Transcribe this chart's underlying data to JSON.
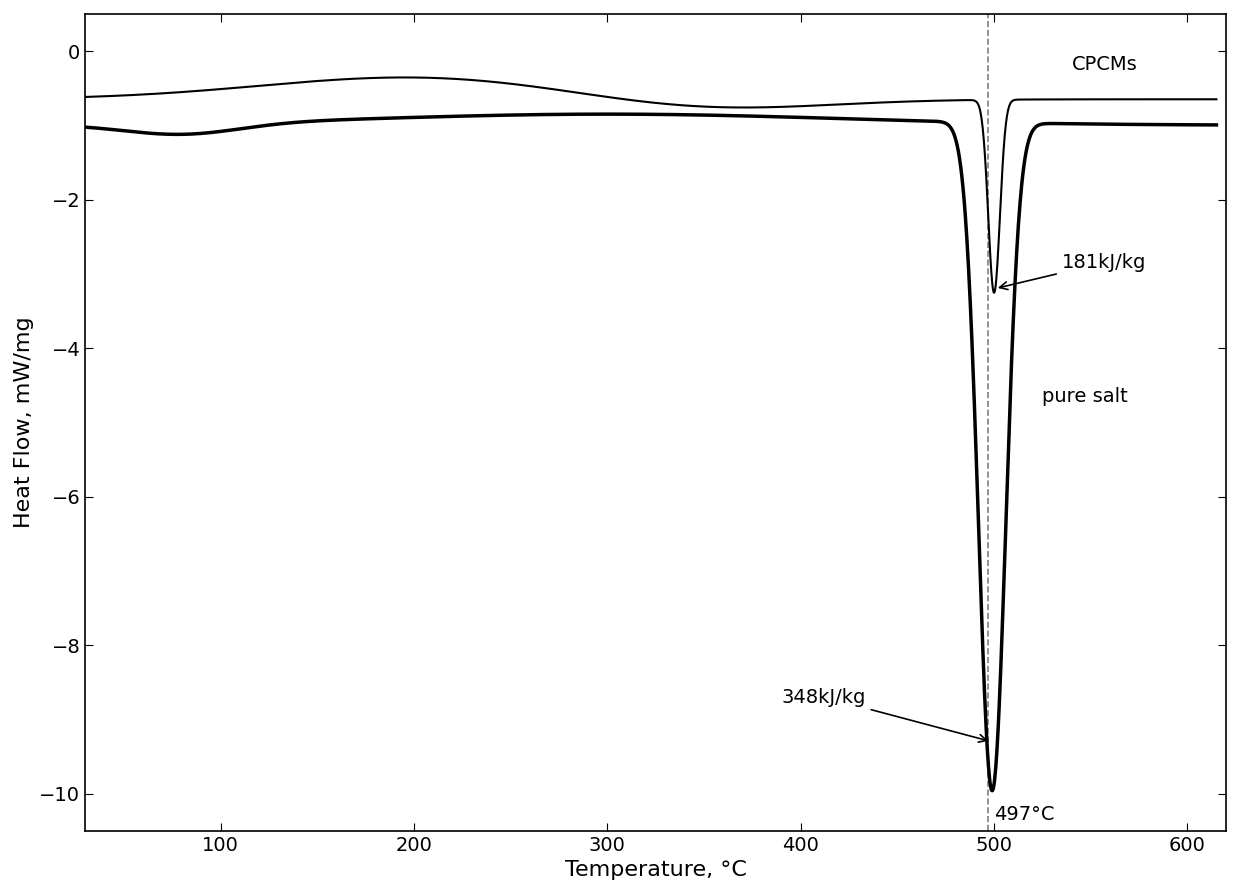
{
  "xlabel": "Temperature, °C",
  "ylabel": "Heat Flow, mW/mg",
  "xlim": [
    30,
    620
  ],
  "ylim": [
    -10.5,
    0.5
  ],
  "yticks": [
    0,
    -2,
    -4,
    -6,
    -8,
    -10
  ],
  "xticks": [
    100,
    200,
    300,
    400,
    500,
    600
  ],
  "vline_x": 497,
  "vline_label": "497°C",
  "annotation_cpcms": "CPCMs",
  "annotation_pure_salt": "pure salt",
  "annotation_181": "181kJ/kg",
  "annotation_348": "348kJ/kg",
  "font_size_labels": 16,
  "font_size_ticks": 14,
  "font_size_annotations": 14,
  "line_color": "black",
  "background_color": "white"
}
